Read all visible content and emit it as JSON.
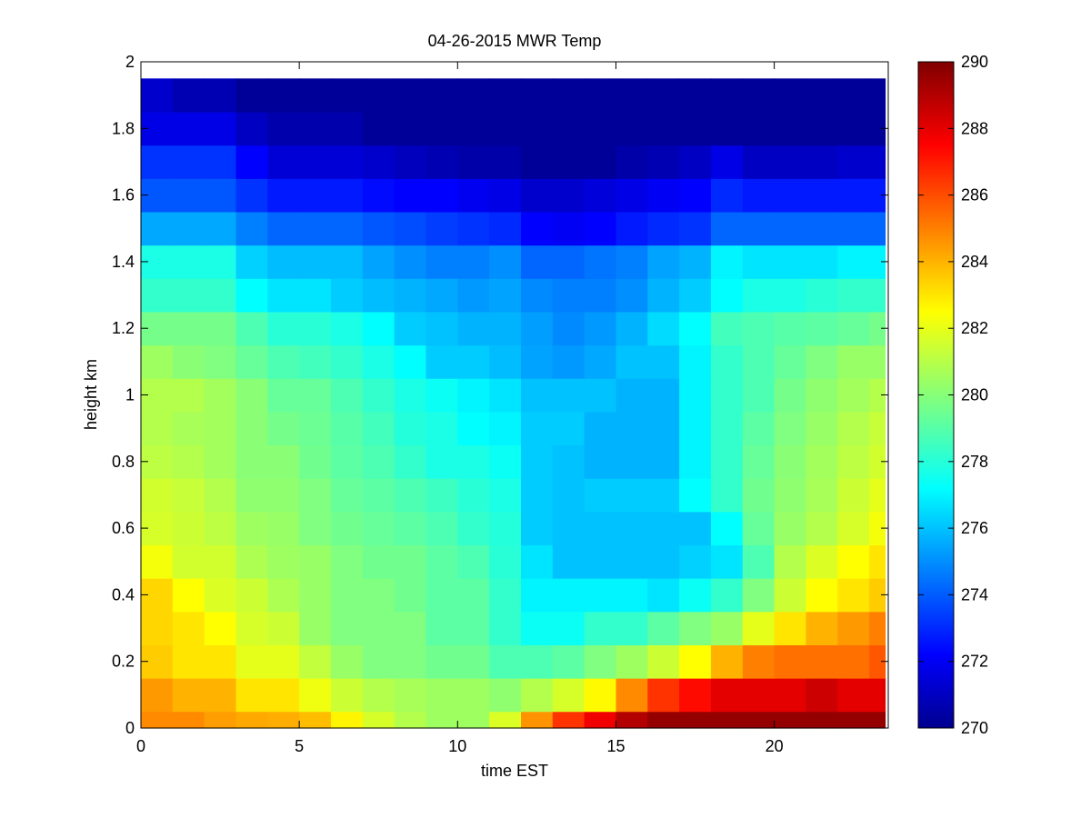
{
  "chart_data": {
    "type": "heatmap",
    "title": "04-26-2015 MWR Temp",
    "xlabel": "time EST",
    "ylabel": "height km",
    "xlim": [
      0,
      23.6
    ],
    "ylim": [
      0,
      2
    ],
    "xticks": [
      "0",
      "5",
      "10",
      "15",
      "20"
    ],
    "yticks": [
      "0",
      "0.2",
      "0.4",
      "0.6",
      "0.8",
      "1",
      "1.2",
      "1.4",
      "1.6",
      "1.8",
      "2"
    ],
    "colormap": "jet",
    "clim": [
      270,
      290
    ],
    "colorbar_ticks": [
      "270",
      "272",
      "274",
      "276",
      "278",
      "280",
      "282",
      "284",
      "286",
      "288",
      "290"
    ],
    "time_hours": [
      0,
      1,
      2,
      3,
      4,
      5,
      6,
      7,
      8,
      9,
      10,
      11,
      12,
      13,
      14,
      15,
      16,
      17,
      18,
      19,
      20,
      21,
      22,
      23
    ],
    "height_km": [
      0,
      0.05,
      0.15,
      0.25,
      0.35,
      0.45,
      0.55,
      0.65,
      0.75,
      0.85,
      0.95,
      1.05,
      1.15,
      1.25,
      1.35,
      1.45,
      1.55,
      1.65,
      1.75,
      1.85,
      1.95
    ],
    "temperature_K": [
      [
        284.8,
        284.8,
        284.4,
        284.2,
        284.1,
        283.8,
        282.7,
        281.7,
        281.0,
        280.6,
        280.6,
        281.8,
        284.6,
        286.5,
        287.8,
        289.0,
        289.6,
        289.6,
        289.6,
        289.6,
        289.6,
        289.6,
        289.6,
        289.6
      ],
      [
        284.5,
        284.0,
        284.0,
        283.0,
        283.0,
        282.2,
        281.5,
        281.0,
        280.8,
        280.6,
        280.6,
        280.3,
        281.0,
        281.7,
        282.6,
        284.8,
        286.5,
        287.3,
        288.0,
        288.0,
        288.0,
        288.5,
        288.0,
        288.0
      ],
      [
        283.5,
        283.0,
        283.0,
        282.0,
        282.0,
        281.3,
        280.5,
        280.0,
        280.0,
        279.7,
        279.7,
        279.0,
        279.0,
        279.3,
        280.0,
        280.6,
        281.5,
        282.5,
        284.0,
        285.0,
        285.3,
        285.3,
        285.3,
        285.8
      ],
      [
        283.3,
        283.0,
        282.5,
        281.7,
        281.5,
        280.5,
        280.0,
        280.0,
        280.0,
        279.3,
        279.3,
        278.5,
        277.7,
        277.7,
        278.5,
        278.5,
        279.3,
        280.0,
        280.5,
        282.0,
        283.0,
        284.0,
        284.5,
        285.0
      ],
      [
        283.3,
        282.5,
        281.8,
        281.5,
        280.9,
        280.5,
        280.0,
        280.0,
        279.7,
        279.3,
        279.3,
        278.5,
        277.3,
        277.3,
        277.3,
        277.3,
        277.0,
        277.7,
        278.5,
        280.0,
        281.5,
        282.5,
        283.0,
        283.5
      ],
      [
        282.3,
        281.6,
        281.6,
        280.9,
        280.6,
        280.5,
        280.0,
        279.7,
        279.7,
        279.3,
        279.0,
        278.3,
        277.0,
        276.3,
        276.3,
        276.3,
        276.3,
        276.6,
        277.0,
        279.0,
        281.0,
        281.8,
        282.5,
        283.0
      ],
      [
        281.7,
        281.5,
        281.2,
        280.6,
        280.5,
        280.0,
        279.7,
        279.5,
        279.3,
        279.0,
        278.5,
        278.2,
        276.5,
        276.3,
        276.3,
        276.3,
        276.3,
        276.3,
        277.5,
        279.5,
        280.5,
        281.0,
        281.7,
        282.3
      ],
      [
        281.6,
        281.4,
        281.0,
        280.3,
        280.3,
        280.0,
        279.5,
        279.3,
        279.0,
        278.7,
        278.3,
        278.0,
        276.5,
        276.3,
        276.5,
        276.5,
        276.5,
        277.5,
        278.5,
        279.7,
        280.3,
        280.8,
        281.5,
        282.0
      ],
      [
        281.2,
        281.0,
        280.7,
        280.2,
        280.2,
        279.7,
        279.3,
        279.0,
        278.5,
        278.0,
        278.0,
        277.7,
        276.5,
        276.3,
        276.0,
        276.0,
        276.0,
        277.3,
        278.5,
        279.5,
        280.2,
        280.7,
        281.2,
        281.6
      ],
      [
        281.0,
        280.8,
        280.7,
        280.2,
        279.8,
        279.6,
        279.2,
        278.8,
        278.2,
        278.0,
        277.5,
        277.3,
        276.5,
        276.5,
        276.0,
        276.0,
        276.0,
        277.3,
        278.5,
        279.3,
        280.0,
        280.5,
        281.0,
        281.4
      ],
      [
        281.0,
        281.0,
        280.7,
        280.2,
        279.5,
        279.5,
        279.0,
        278.5,
        278.0,
        277.7,
        277.3,
        277.0,
        276.3,
        276.3,
        276.3,
        276.0,
        276.0,
        277.3,
        278.5,
        279.0,
        279.8,
        280.3,
        280.7,
        281.0
      ],
      [
        280.6,
        280.2,
        280.0,
        279.5,
        279.0,
        278.8,
        278.5,
        278.0,
        277.5,
        276.5,
        276.5,
        276.2,
        275.7,
        275.5,
        275.8,
        276.3,
        276.3,
        277.3,
        278.5,
        279.0,
        279.5,
        280.0,
        280.5,
        280.5
      ],
      [
        279.8,
        279.8,
        279.8,
        279.0,
        278.3,
        278.3,
        278.0,
        277.5,
        276.5,
        276.3,
        276.0,
        276.0,
        275.6,
        275.2,
        275.5,
        276.0,
        276.8,
        277.5,
        278.8,
        279.0,
        279.2,
        279.3,
        279.5,
        279.8
      ],
      [
        278.5,
        278.5,
        278.5,
        277.5,
        277.0,
        277.0,
        276.5,
        276.2,
        276.0,
        275.8,
        275.5,
        275.7,
        275.2,
        275.0,
        275.0,
        275.3,
        276.0,
        276.5,
        277.5,
        278.0,
        278.0,
        278.3,
        278.5,
        278.5
      ],
      [
        278.0,
        278.0,
        278.0,
        276.6,
        276.2,
        276.2,
        276.2,
        275.7,
        275.3,
        275.0,
        275.0,
        275.3,
        274.5,
        274.5,
        274.8,
        275.0,
        275.7,
        276.0,
        277.3,
        277.0,
        277.0,
        277.0,
        277.3,
        277.3
      ],
      [
        275.8,
        275.8,
        275.8,
        275.0,
        274.5,
        274.5,
        274.5,
        274.2,
        274.0,
        273.7,
        273.5,
        273.3,
        272.5,
        272.3,
        272.5,
        273.0,
        273.3,
        273.5,
        274.5,
        274.5,
        274.5,
        274.5,
        274.5,
        274.5
      ],
      [
        274.2,
        274.2,
        274.2,
        273.5,
        273.0,
        273.0,
        273.0,
        272.7,
        272.5,
        272.5,
        272.2,
        272.0,
        271.5,
        271.5,
        271.8,
        272.0,
        272.3,
        272.5,
        273.3,
        273.0,
        273.0,
        273.0,
        273.0,
        273.0
      ],
      [
        273.5,
        273.5,
        273.5,
        272.5,
        271.7,
        271.7,
        271.7,
        271.5,
        271.2,
        271.0,
        270.8,
        270.8,
        270.5,
        270.5,
        270.5,
        270.8,
        271.0,
        271.3,
        272.0,
        271.3,
        271.3,
        271.3,
        271.5,
        271.5
      ],
      [
        272.0,
        272.0,
        272.0,
        271.3,
        270.9,
        270.9,
        270.9,
        270.5,
        270.5,
        270.5,
        270.5,
        270.5,
        270.5,
        270.5,
        270.5,
        270.5,
        270.5,
        270.5,
        270.5,
        270.5,
        270.5,
        270.5,
        270.5,
        270.5
      ],
      [
        271.5,
        271.0,
        271.0,
        270.5,
        270.5,
        270.5,
        270.5,
        270.5,
        270.5,
        270.5,
        270.5,
        270.5,
        270.5,
        270.5,
        270.5,
        270.5,
        270.5,
        270.5,
        270.5,
        270.5,
        270.5,
        270.5,
        270.5,
        270.5
      ],
      [
        270.5,
        270.5,
        270.5,
        270.5,
        270.5,
        270.5,
        270.5,
        270.5,
        270.5,
        270.5,
        270.5,
        270.5,
        270.5,
        270.5,
        270.5,
        270.5,
        270.5,
        270.5,
        270.5,
        270.5,
        270.5,
        270.5,
        270.5,
        270.5
      ]
    ]
  }
}
